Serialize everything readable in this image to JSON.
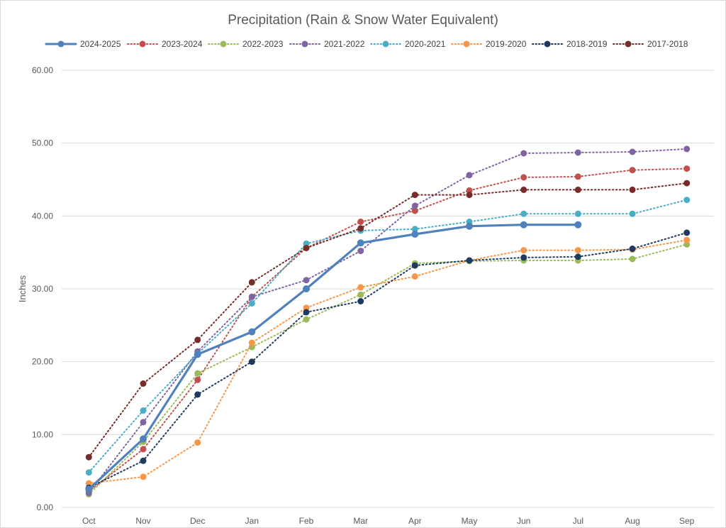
{
  "chart_data": {
    "type": "line",
    "title": "Precipitation (Rain & Snow Water Equivalent)",
    "ylabel": "Inches",
    "xlabel": "",
    "categories": [
      "Oct",
      "Nov",
      "Dec",
      "Jan",
      "Feb",
      "Mar",
      "Apr",
      "May",
      "Jun",
      "Jul",
      "Aug",
      "Sep"
    ],
    "ylim": [
      0,
      60
    ],
    "yticks": [
      "0.00",
      "10.00",
      "20.00",
      "30.00",
      "40.00",
      "50.00",
      "60.00"
    ],
    "grid": "horizontal",
    "legend_position": "top",
    "series": [
      {
        "name": "2024-2025",
        "color": "#4F81BD",
        "style": "solid",
        "values": [
          2.5,
          9.4,
          21.0,
          24.1,
          30.0,
          36.3,
          37.5,
          38.6,
          38.8,
          38.8,
          null,
          null
        ]
      },
      {
        "name": "2023-2024",
        "color": "#C0504D",
        "style": "dotted",
        "values": [
          2.2,
          8.0,
          17.5,
          28.9,
          35.6,
          39.2,
          40.7,
          43.5,
          45.3,
          45.4,
          46.3,
          46.5
        ]
      },
      {
        "name": "2022-2023",
        "color": "#9BBB59",
        "style": "dotted",
        "values": [
          1.8,
          9.0,
          18.4,
          22.0,
          25.8,
          29.2,
          33.5,
          33.8,
          33.9,
          33.9,
          34.1,
          36.1
        ]
      },
      {
        "name": "2021-2022",
        "color": "#8064A2",
        "style": "dotted",
        "values": [
          2.0,
          11.7,
          21.4,
          28.9,
          31.2,
          35.2,
          41.4,
          45.6,
          48.6,
          48.7,
          48.8,
          49.2
        ]
      },
      {
        "name": "2020-2021",
        "color": "#4BACC6",
        "style": "dotted",
        "values": [
          4.8,
          13.3,
          21.1,
          28.0,
          36.2,
          38.0,
          38.2,
          39.2,
          40.3,
          40.3,
          40.3,
          42.2
        ]
      },
      {
        "name": "2019-2020",
        "color": "#F79646",
        "style": "dotted",
        "values": [
          3.3,
          4.2,
          8.9,
          22.6,
          27.4,
          30.2,
          31.7,
          33.9,
          35.3,
          35.3,
          35.4,
          36.7
        ]
      },
      {
        "name": "2018-2019",
        "color": "#1F3A5F",
        "style": "dotted",
        "values": [
          2.7,
          6.4,
          15.5,
          20.0,
          26.8,
          28.3,
          33.2,
          33.9,
          34.3,
          34.4,
          35.5,
          37.7
        ]
      },
      {
        "name": "2017-2018",
        "color": "#772C2A",
        "style": "dotted",
        "values": [
          6.9,
          17.0,
          23.0,
          30.9,
          35.6,
          38.3,
          42.9,
          42.9,
          43.6,
          43.6,
          43.6,
          44.5
        ]
      }
    ]
  }
}
